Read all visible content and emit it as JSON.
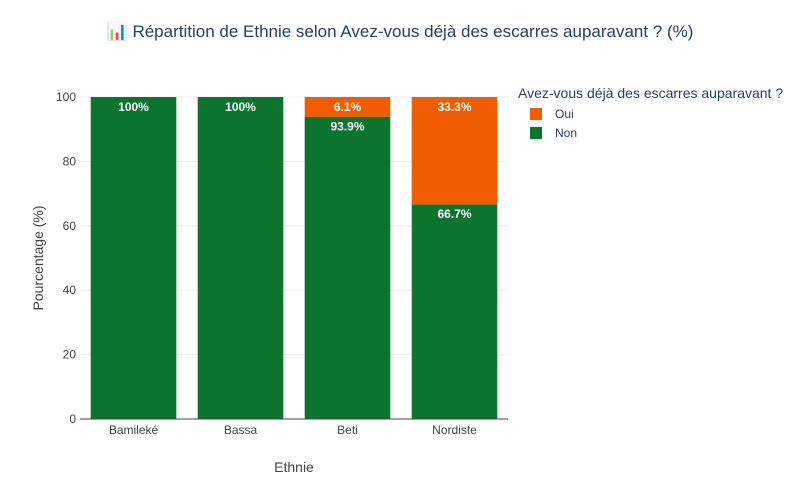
{
  "title_icon": "📊",
  "chart_data": {
    "type": "bar",
    "stacked": true,
    "title": "Répartition de Ethnie selon Avez-vous déjà des escarres auparavant ? (%)",
    "xlabel": "Ethnie",
    "ylabel": "Pourcentage (%)",
    "ylim": [
      0,
      100
    ],
    "yticks": [
      0,
      20,
      40,
      60,
      80,
      100
    ],
    "categories": [
      "Bamileké",
      "Bassa",
      "Beti",
      "Nordiste"
    ],
    "legend_title": "Avez-vous déjà des escarres auparavant ?",
    "legend_position": "top-right",
    "grid": true,
    "series": [
      {
        "name": "Non",
        "color": "#0b7530",
        "values": [
          100,
          100,
          93.9,
          66.7
        ],
        "labels": [
          "100%",
          "100%",
          "93.9%",
          "66.7%"
        ]
      },
      {
        "name": "Oui",
        "color": "#f25c00",
        "values": [
          0,
          0,
          6.1,
          33.3
        ],
        "labels": [
          "",
          "",
          "6.1%",
          "33.3%"
        ]
      }
    ],
    "legend_order": [
      "Oui",
      "Non"
    ]
  }
}
